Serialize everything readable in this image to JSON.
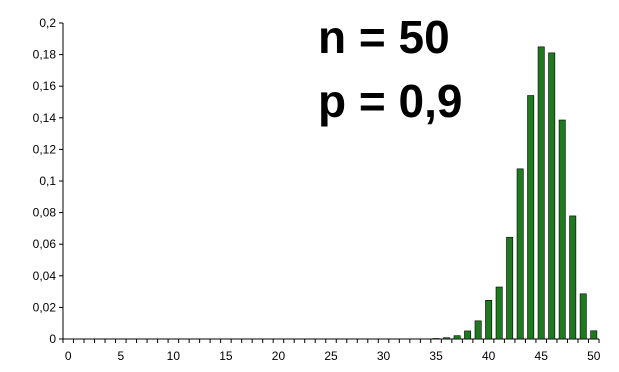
{
  "chart_data": {
    "type": "bar",
    "title": "",
    "xlabel": "",
    "ylabel": "",
    "annotations": [
      "n = 50",
      "p = 0,9"
    ],
    "x_ticks": [
      "0",
      "5",
      "10",
      "15",
      "20",
      "25",
      "30",
      "35",
      "40",
      "45",
      "50"
    ],
    "y_ticks": [
      "0",
      "0,02",
      "0,04",
      "0,06",
      "0,08",
      "0,1",
      "0,12",
      "0,14",
      "0,16",
      "0,18",
      "0,2"
    ],
    "ylim": [
      0,
      0.2
    ],
    "xlim": [
      0,
      50
    ],
    "grid": false,
    "bar_color": "#1f7a1f",
    "bar_edge_color": "#000000",
    "categories": [
      35,
      36,
      37,
      38,
      39,
      40,
      41,
      42,
      43,
      44,
      45,
      46,
      47,
      48,
      49,
      50
    ],
    "values": [
      0.0003,
      0.0008,
      0.0021,
      0.0051,
      0.0115,
      0.0245,
      0.0329,
      0.0644,
      0.1077,
      0.1541,
      0.1849,
      0.1811,
      0.1386,
      0.0779,
      0.0286,
      0.0052
    ]
  }
}
